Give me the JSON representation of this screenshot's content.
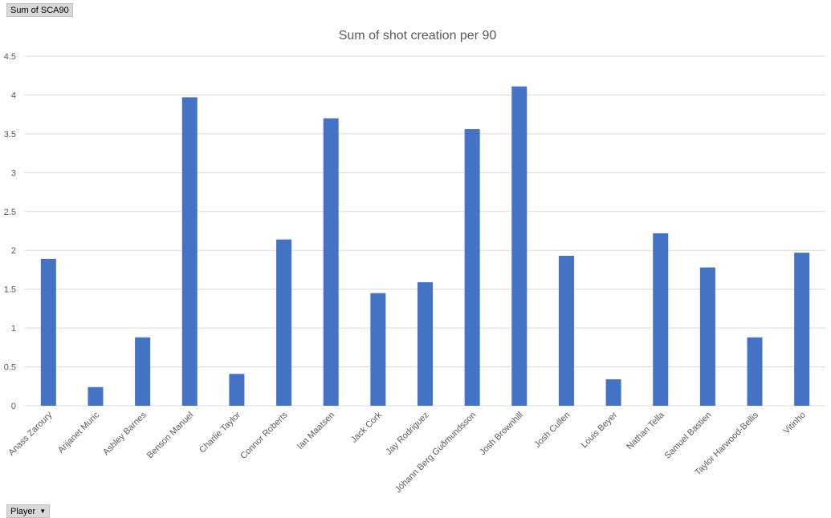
{
  "field_buttons": {
    "value_field": "Sum of SCA90",
    "axis_field": "Player"
  },
  "chart_data": {
    "type": "bar",
    "title": "Sum of shot creation per 90",
    "xlabel": "",
    "ylabel": "",
    "ylim": [
      0,
      4.5
    ],
    "yticks": [
      "0",
      "0.5",
      "1",
      "1.5",
      "2",
      "2.5",
      "3",
      "3.5",
      "4",
      "4.5"
    ],
    "grid": true,
    "legend": "none",
    "bar_color": "#4472c4",
    "categories": [
      "Anass Zaroury",
      "Arijanet Muric",
      "Ashley Barnes",
      "Benson Manuel",
      "Charlie Taylor",
      "Connor Roberts",
      "Ian Maatsen",
      "Jack Cork",
      "Jay Rodriguez",
      "Jóhann Berg Guðmundsson",
      "Josh Brownhill",
      "Josh Cullen",
      "Louis Beyer",
      "Nathan Tella",
      "Samuel Bastien",
      "Taylor Harwood-Bellis",
      "Vitinho"
    ],
    "values": [
      1.89,
      0.24,
      0.88,
      3.97,
      0.41,
      2.14,
      3.7,
      1.45,
      1.59,
      3.56,
      4.11,
      1.93,
      0.34,
      2.22,
      1.78,
      0.88,
      1.97
    ]
  }
}
